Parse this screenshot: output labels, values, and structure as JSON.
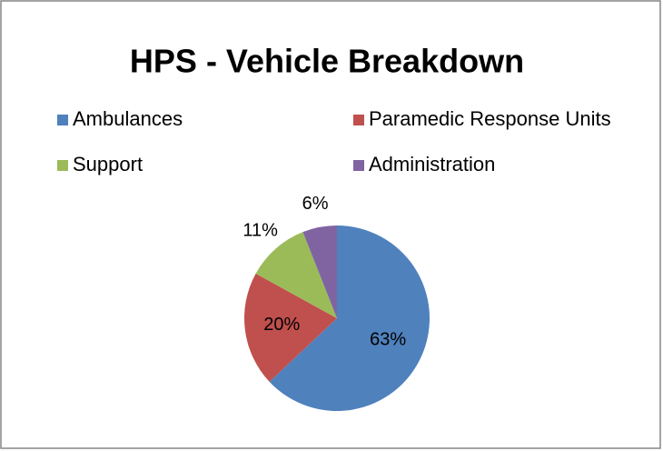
{
  "chart_data": {
    "type": "pie",
    "title": "HPS - Vehicle Breakdown",
    "categories": [
      "Ambulances",
      "Paramedic Response Units",
      "Support",
      "Administration"
    ],
    "values": [
      63,
      20,
      11,
      6
    ],
    "value_labels": [
      "63%",
      "20%",
      "11%",
      "6%"
    ],
    "colors": [
      "#4f81bd",
      "#c0504d",
      "#9bbb59",
      "#8064a2"
    ],
    "legend": "top"
  }
}
